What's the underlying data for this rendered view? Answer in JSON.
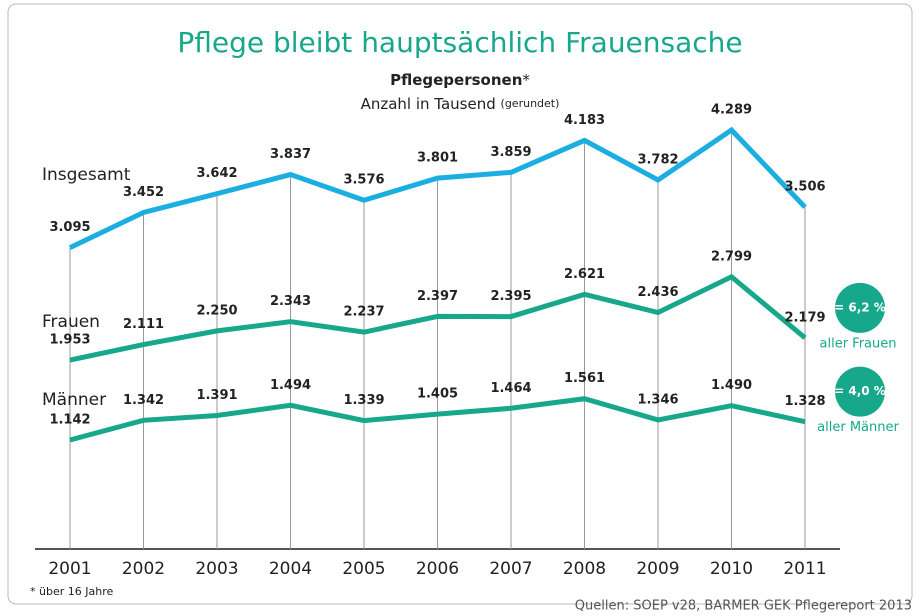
{
  "chart_data": {
    "type": "line",
    "title": "Pflege bleibt hauptsächlich Frauensache",
    "subtitle": "Pflegepersonen",
    "subtitle_mark": "*",
    "unit_label": "Anzahl in Tausend",
    "unit_note": "(gerundet)",
    "categories": [
      "2001",
      "2002",
      "2003",
      "2004",
      "2005",
      "2006",
      "2007",
      "2008",
      "2009",
      "2010",
      "2011"
    ],
    "series": [
      {
        "name": "Insgesamt",
        "color": "#1baee1",
        "values": [
          3095,
          3452,
          3642,
          3837,
          3576,
          3801,
          3859,
          4183,
          3782,
          4289,
          3506
        ],
        "value_labels": [
          "3.095",
          "3.452",
          "3.642",
          "3.837",
          "3.576",
          "3.801",
          "3.859",
          "4.183",
          "3.782",
          "4.289",
          "3.506"
        ]
      },
      {
        "name": "Frauen",
        "color": "#17a88b",
        "values": [
          1953,
          2111,
          2250,
          2343,
          2237,
          2397,
          2395,
          2621,
          2436,
          2799,
          2179
        ],
        "value_labels": [
          "1.953",
          "2.111",
          "2.250",
          "2.343",
          "2.237",
          "2.397",
          "2.395",
          "2.621",
          "2.436",
          "2.799",
          "2.179"
        ]
      },
      {
        "name": "Männer",
        "color": "#17a88b",
        "values": [
          1142,
          1342,
          1391,
          1494,
          1339,
          1405,
          1464,
          1561,
          1346,
          1490,
          1328
        ],
        "value_labels": [
          "1.142",
          "1.342",
          "1.391",
          "1.494",
          "1.339",
          "1.405",
          "1.464",
          "1.561",
          "1.346",
          "1.490",
          "1.328"
        ]
      }
    ],
    "annotations": [
      {
        "badge": "= 6,2 %",
        "text": "aller Frauen"
      },
      {
        "badge": "= 4,0 %",
        "text": "aller Männer"
      }
    ],
    "footnote": "* über 16 Jahre",
    "source": "Quellen: SOEP v28, BARMER GEK Pflegereport 2013"
  }
}
